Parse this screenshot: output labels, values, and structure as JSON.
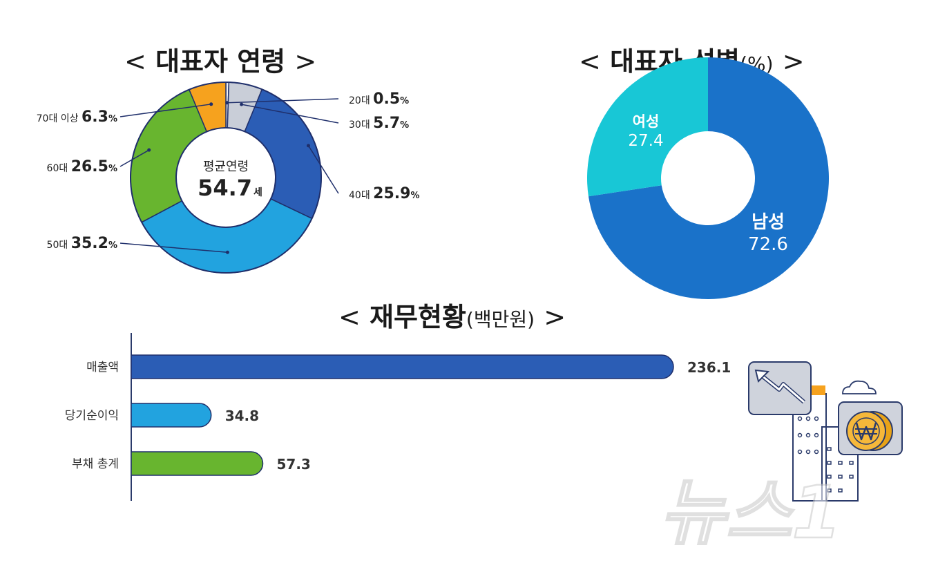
{
  "age": {
    "title": "대표자 연령",
    "center_label": "평균연령",
    "center_value": "54.7",
    "center_unit": "세"
  },
  "gender": {
    "title": "대표자 성별",
    "title_unit": "(%)"
  },
  "finance": {
    "title": "재무현황",
    "title_unit": "(백만원)"
  },
  "bracket_left": "<",
  "bracket_right": ">",
  "watermark": "뉴스1",
  "colors": {
    "age_20": "#f2f2f2",
    "age_30": "#c9ced8",
    "age_40": "#2b5db5",
    "age_50": "#22a3df",
    "age_60": "#68b52f",
    "age_70": "#f6a21e",
    "gender_male": "#1a72c9",
    "gender_female": "#18c7d6",
    "bar_sales": "#2b5db5",
    "bar_profit": "#22a3df",
    "bar_debt": "#68b52f"
  },
  "chart_data": [
    {
      "type": "pie",
      "title": "대표자 연령",
      "categories": [
        "20대",
        "30대",
        "40대",
        "50대",
        "60대",
        "70대 이상"
      ],
      "values": [
        0.5,
        5.7,
        25.9,
        35.2,
        26.5,
        6.3
      ],
      "unit": "%"
    },
    {
      "type": "pie",
      "title": "대표자 성별",
      "categories": [
        "남성",
        "여성"
      ],
      "values": [
        72.6,
        27.4
      ],
      "unit": "%"
    },
    {
      "type": "bar",
      "title": "재무현황",
      "categories": [
        "매출액",
        "당기순이익",
        "부채 총계"
      ],
      "values": [
        236.1,
        34.8,
        57.3
      ],
      "unit": "백만원"
    }
  ]
}
